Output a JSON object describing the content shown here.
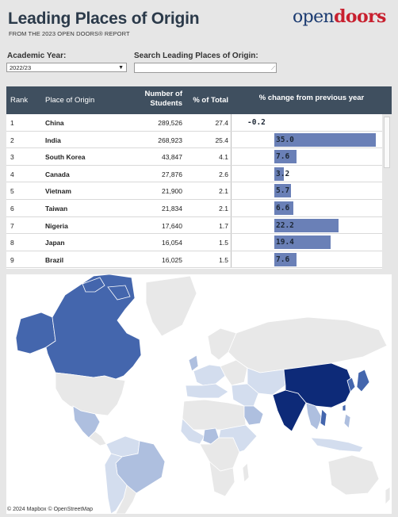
{
  "header": {
    "title": "Leading Places of Origin",
    "subtitle": "FROM THE 2023 OPEN DOORS® REPORT",
    "logo_open": "open",
    "logo_doors": "doors"
  },
  "filters": {
    "year_label": "Academic Year:",
    "year_value": "2022/23",
    "search_label": "Search Leading Places of Origin:",
    "search_value": ""
  },
  "table": {
    "headers": {
      "rank": "Rank",
      "place": "Place of Origin",
      "students_line1": "Number of",
      "students_line2": "Students",
      "pct": "% of Total",
      "change": "% change from previous year"
    }
  },
  "chart_data": {
    "type": "bar",
    "x_label": "% change from previous year",
    "rows": [
      {
        "rank": "1",
        "place": "China",
        "students": "289,526",
        "pct_total": "27.4",
        "change": -0.2
      },
      {
        "rank": "2",
        "place": "India",
        "students": "268,923",
        "pct_total": "25.4",
        "change": 35.0
      },
      {
        "rank": "3",
        "place": "South Korea",
        "students": "43,847",
        "pct_total": "4.1",
        "change": 7.6
      },
      {
        "rank": "4",
        "place": "Canada",
        "students": "27,876",
        "pct_total": "2.6",
        "change": 3.2
      },
      {
        "rank": "5",
        "place": "Vietnam",
        "students": "21,900",
        "pct_total": "2.1",
        "change": 5.7
      },
      {
        "rank": "6",
        "place": "Taiwan",
        "students": "21,834",
        "pct_total": "2.1",
        "change": 6.6
      },
      {
        "rank": "7",
        "place": "Nigeria",
        "students": "17,640",
        "pct_total": "1.7",
        "change": 22.2
      },
      {
        "rank": "8",
        "place": "Japan",
        "students": "16,054",
        "pct_total": "1.5",
        "change": 19.4
      },
      {
        "rank": "9",
        "place": "Brazil",
        "students": "16,025",
        "pct_total": "1.5",
        "change": 7.6
      }
    ],
    "bar_color": "#6a80b7"
  },
  "map": {
    "attribution": "© 2024 Mapbox © OpenStreetMap",
    "colors": {
      "highest": "#0d2a78",
      "high": "#4466ad",
      "medium": "#aebfdf",
      "low": "#d3ddee",
      "none": "#e8e8e8",
      "ocean": "#ffffff"
    }
  }
}
